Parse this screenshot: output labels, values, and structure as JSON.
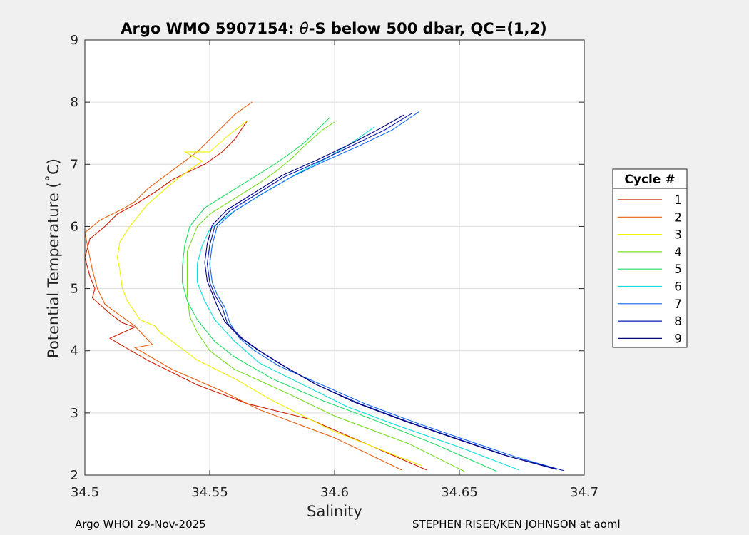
{
  "chart_data": {
    "type": "line",
    "title": "Argo WMO 5907154: θ-S below 500 dbar,  QC=(1,2)",
    "title_prefix": "Argo WMO 5907154: ",
    "title_theta": "θ",
    "title_suffix": "-S below 500 dbar,  QC=(1,2)",
    "xlabel": "Salinity",
    "ylabel": "Potential Temperature (˚C)",
    "xlim": [
      34.5,
      34.7
    ],
    "ylim": [
      2,
      9
    ],
    "xticks": [
      34.5,
      34.55,
      34.6,
      34.65,
      34.7
    ],
    "xtick_labels": [
      "34.5",
      "34.55",
      "34.6",
      "34.65",
      "34.7"
    ],
    "yticks": [
      2,
      3,
      4,
      5,
      6,
      7,
      8,
      9
    ],
    "ytick_labels": [
      "2",
      "3",
      "4",
      "5",
      "6",
      "7",
      "8",
      "9"
    ],
    "grid": true,
    "legend_title": "Cycle #",
    "legend_position": "right-outside",
    "series": [
      {
        "name": "1",
        "color": "#cc1a00",
        "points": [
          [
            34.637,
            2.08
          ],
          [
            34.61,
            2.55
          ],
          [
            34.59,
            2.9
          ],
          [
            34.565,
            3.15
          ],
          [
            34.545,
            3.45
          ],
          [
            34.525,
            3.85
          ],
          [
            34.51,
            4.2
          ],
          [
            34.52,
            4.38
          ],
          [
            34.515,
            4.45
          ],
          [
            34.51,
            4.6
          ],
          [
            34.503,
            4.85
          ],
          [
            34.504,
            5.0
          ],
          [
            34.502,
            5.2
          ],
          [
            34.5,
            5.5
          ],
          [
            34.502,
            5.8
          ],
          [
            34.508,
            6.0
          ],
          [
            34.513,
            6.2
          ],
          [
            34.52,
            6.35
          ],
          [
            34.528,
            6.55
          ],
          [
            34.535,
            6.75
          ],
          [
            34.54,
            6.85
          ],
          [
            34.548,
            7.0
          ],
          [
            34.555,
            7.2
          ],
          [
            34.56,
            7.4
          ],
          [
            34.563,
            7.58
          ],
          [
            34.565,
            7.7
          ]
        ]
      },
      {
        "name": "2",
        "color": "#e86010",
        "points": [
          [
            34.627,
            2.08
          ],
          [
            34.6,
            2.6
          ],
          [
            34.57,
            3.05
          ],
          [
            34.555,
            3.35
          ],
          [
            34.535,
            3.7
          ],
          [
            34.52,
            4.05
          ],
          [
            34.527,
            4.1
          ],
          [
            34.52,
            4.4
          ],
          [
            34.513,
            4.6
          ],
          [
            34.508,
            4.75
          ],
          [
            34.505,
            5.0
          ],
          [
            34.503,
            5.3
          ],
          [
            34.501,
            5.7
          ],
          [
            34.5,
            5.9
          ],
          [
            34.506,
            6.1
          ],
          [
            34.516,
            6.3
          ],
          [
            34.52,
            6.4
          ],
          [
            34.525,
            6.6
          ],
          [
            34.535,
            6.9
          ],
          [
            34.545,
            7.2
          ],
          [
            34.55,
            7.4
          ],
          [
            34.555,
            7.6
          ],
          [
            34.56,
            7.8
          ],
          [
            34.567,
            8.0
          ]
        ]
      },
      {
        "name": "3",
        "color": "#f0f000",
        "points": [
          [
            34.635,
            2.15
          ],
          [
            34.6,
            2.7
          ],
          [
            34.575,
            3.2
          ],
          [
            34.56,
            3.55
          ],
          [
            34.545,
            3.85
          ],
          [
            34.53,
            4.3
          ],
          [
            34.528,
            4.4
          ],
          [
            34.522,
            4.5
          ],
          [
            34.517,
            4.8
          ],
          [
            34.515,
            5.0
          ],
          [
            34.514,
            5.3
          ],
          [
            34.513,
            5.5
          ],
          [
            34.514,
            5.75
          ],
          [
            34.518,
            6.0
          ],
          [
            34.525,
            6.35
          ],
          [
            34.535,
            6.7
          ],
          [
            34.54,
            6.85
          ],
          [
            34.547,
            7.05
          ],
          [
            34.54,
            7.2
          ],
          [
            34.55,
            7.2
          ],
          [
            34.557,
            7.45
          ],
          [
            34.565,
            7.7
          ]
        ]
      },
      {
        "name": "4",
        "color": "#77dd22",
        "points": [
          [
            34.652,
            2.06
          ],
          [
            34.63,
            2.5
          ],
          [
            34.6,
            2.95
          ],
          [
            34.582,
            3.3
          ],
          [
            34.56,
            3.7
          ],
          [
            34.55,
            4.0
          ],
          [
            34.545,
            4.3
          ],
          [
            34.542,
            4.55
          ],
          [
            34.541,
            4.9
          ],
          [
            34.541,
            5.3
          ],
          [
            34.541,
            5.6
          ],
          [
            34.545,
            6.0
          ],
          [
            34.55,
            6.2
          ],
          [
            34.56,
            6.45
          ],
          [
            34.57,
            6.7
          ],
          [
            34.577,
            6.9
          ],
          [
            34.583,
            7.1
          ],
          [
            34.588,
            7.3
          ],
          [
            34.595,
            7.55
          ],
          [
            34.6,
            7.68
          ]
        ]
      },
      {
        "name": "5",
        "color": "#22dd66",
        "points": [
          [
            34.665,
            2.06
          ],
          [
            34.64,
            2.5
          ],
          [
            34.615,
            2.9
          ],
          [
            34.595,
            3.2
          ],
          [
            34.575,
            3.55
          ],
          [
            34.56,
            3.9
          ],
          [
            34.552,
            4.15
          ],
          [
            34.545,
            4.5
          ],
          [
            34.541,
            4.8
          ],
          [
            34.539,
            5.1
          ],
          [
            34.539,
            5.35
          ],
          [
            34.54,
            5.7
          ],
          [
            34.542,
            6.0
          ],
          [
            34.548,
            6.3
          ],
          [
            34.558,
            6.55
          ],
          [
            34.568,
            6.8
          ],
          [
            34.576,
            7.0
          ],
          [
            34.583,
            7.2
          ],
          [
            34.588,
            7.35
          ],
          [
            34.593,
            7.55
          ],
          [
            34.598,
            7.75
          ]
        ]
      },
      {
        "name": "6",
        "color": "#11dddd",
        "points": [
          [
            34.674,
            2.08
          ],
          [
            34.65,
            2.45
          ],
          [
            34.625,
            2.8
          ],
          [
            34.605,
            3.1
          ],
          [
            34.585,
            3.5
          ],
          [
            34.57,
            3.8
          ],
          [
            34.56,
            4.15
          ],
          [
            34.552,
            4.5
          ],
          [
            34.548,
            4.8
          ],
          [
            34.545,
            5.1
          ],
          [
            34.545,
            5.4
          ],
          [
            34.547,
            5.7
          ],
          [
            34.55,
            5.95
          ],
          [
            34.558,
            6.2
          ],
          [
            34.57,
            6.5
          ],
          [
            34.585,
            6.85
          ],
          [
            34.597,
            7.1
          ],
          [
            34.607,
            7.35
          ],
          [
            34.616,
            7.6
          ]
        ]
      },
      {
        "name": "7",
        "color": "#1166ee",
        "points": [
          [
            34.691,
            2.08
          ],
          [
            34.672,
            2.3
          ],
          [
            34.65,
            2.6
          ],
          [
            34.632,
            2.85
          ],
          [
            34.612,
            3.15
          ],
          [
            34.595,
            3.45
          ],
          [
            34.578,
            3.75
          ],
          [
            34.568,
            4.0
          ],
          [
            34.562,
            4.2
          ],
          [
            34.558,
            4.45
          ],
          [
            34.556,
            4.7
          ],
          [
            34.553,
            4.9
          ],
          [
            34.551,
            5.1
          ],
          [
            34.55,
            5.4
          ],
          [
            34.551,
            5.7
          ],
          [
            34.553,
            6.0
          ],
          [
            34.56,
            6.25
          ],
          [
            34.57,
            6.5
          ],
          [
            34.583,
            6.8
          ],
          [
            34.596,
            7.05
          ],
          [
            34.61,
            7.3
          ],
          [
            34.623,
            7.55
          ],
          [
            34.634,
            7.85
          ]
        ]
      },
      {
        "name": "8",
        "color": "#0a1aaa",
        "points": [
          [
            34.692,
            2.07
          ],
          [
            34.67,
            2.3
          ],
          [
            34.648,
            2.6
          ],
          [
            34.63,
            2.85
          ],
          [
            34.61,
            3.15
          ],
          [
            34.593,
            3.45
          ],
          [
            34.58,
            3.75
          ],
          [
            34.57,
            4.0
          ],
          [
            34.563,
            4.2
          ],
          [
            34.557,
            4.45
          ],
          [
            34.555,
            4.7
          ],
          [
            34.552,
            4.9
          ],
          [
            34.55,
            5.1
          ],
          [
            34.549,
            5.4
          ],
          [
            34.55,
            5.7
          ],
          [
            34.552,
            6.0
          ],
          [
            34.558,
            6.25
          ],
          [
            34.568,
            6.5
          ],
          [
            34.58,
            6.8
          ],
          [
            34.594,
            7.05
          ],
          [
            34.607,
            7.3
          ],
          [
            34.62,
            7.55
          ],
          [
            34.631,
            7.82
          ]
        ]
      },
      {
        "name": "9",
        "color": "#000080",
        "points": [
          [
            34.689,
            2.09
          ],
          [
            34.668,
            2.32
          ],
          [
            34.646,
            2.62
          ],
          [
            34.628,
            2.87
          ],
          [
            34.608,
            3.17
          ],
          [
            34.592,
            3.47
          ],
          [
            34.579,
            3.77
          ],
          [
            34.569,
            4.02
          ],
          [
            34.562,
            4.22
          ],
          [
            34.556,
            4.47
          ],
          [
            34.553,
            4.72
          ],
          [
            34.551,
            4.92
          ],
          [
            34.549,
            5.12
          ],
          [
            34.548,
            5.42
          ],
          [
            34.549,
            5.72
          ],
          [
            34.551,
            6.02
          ],
          [
            34.557,
            6.27
          ],
          [
            34.567,
            6.52
          ],
          [
            34.579,
            6.82
          ],
          [
            34.593,
            7.07
          ],
          [
            34.606,
            7.32
          ],
          [
            34.618,
            7.57
          ],
          [
            34.628,
            7.8
          ]
        ]
      }
    ]
  },
  "footer": {
    "left": "Argo WHOI 29-Nov-2025",
    "right": "STEPHEN RISER/KEN JOHNSON at aoml"
  }
}
